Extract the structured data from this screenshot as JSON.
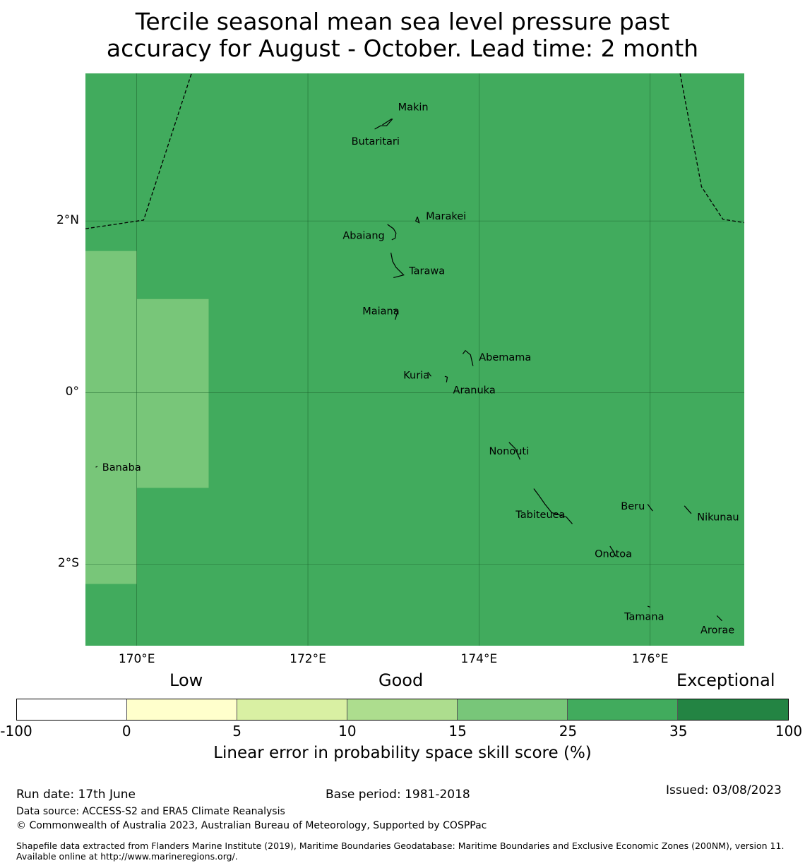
{
  "title": {
    "line1": "Tercile seasonal mean sea level pressure past",
    "line2": "accuracy for August - October. Lead time: 2 month"
  },
  "map": {
    "region": {
      "lon_min": 169.4,
      "lon_max": 177.1,
      "lat_min": -2.95,
      "lat_max": 3.72
    },
    "background_color": "#41ab5d",
    "lat_ticks": [
      {
        "value": 2,
        "label": "2°N"
      },
      {
        "value": 0,
        "label": "0°"
      },
      {
        "value": -2,
        "label": "2°S"
      }
    ],
    "lon_ticks": [
      {
        "value": 170,
        "label": "170°E"
      },
      {
        "value": 172,
        "label": "172°E"
      },
      {
        "value": 174,
        "label": "174°E"
      },
      {
        "value": 176,
        "label": "176°E"
      }
    ],
    "skill_cells": [
      {
        "lon_min": 169.4,
        "lon_max": 170.0,
        "lat_min": -2.23,
        "lat_max": 1.65,
        "category": "15-25",
        "color": "#78c679"
      },
      {
        "lon_min": 170.0,
        "lon_max": 170.84,
        "lat_min": -1.11,
        "lat_max": 1.09,
        "category": "15-25",
        "color": "#78c679"
      }
    ],
    "eez_boundaries": [
      [
        [
          169.4,
          1.91
        ],
        [
          170.08,
          2.01
        ],
        [
          170.64,
          3.72
        ]
      ],
      [
        [
          176.35,
          3.72
        ],
        [
          176.6,
          2.4
        ],
        [
          176.85,
          2.02
        ],
        [
          177.1,
          1.98
        ]
      ]
    ],
    "islands": [
      {
        "name": "Makin",
        "lon": 172.97,
        "lat": 3.27,
        "shape": [
          [
            172.87,
            3.12
          ],
          [
            172.98,
            3.19
          ]
        ]
      },
      {
        "name": "Butaritari",
        "lon": 172.79,
        "lat": 3.02,
        "shape": [
          [
            172.78,
            3.07
          ],
          [
            172.85,
            3.11
          ],
          [
            172.92,
            3.11
          ],
          [
            172.99,
            3.19
          ]
        ]
      },
      {
        "name": "Marakei",
        "lon": 173.28,
        "lat": 2.0,
        "shape": [
          [
            173.28,
            2.05
          ],
          [
            173.26,
            2.0
          ],
          [
            173.3,
            1.98
          ],
          [
            173.28,
            2.05
          ]
        ]
      },
      {
        "name": "Abaiang",
        "lon": 172.93,
        "lat": 1.84,
        "shape": [
          [
            172.93,
            1.96
          ],
          [
            173.0,
            1.91
          ],
          [
            173.03,
            1.86
          ],
          [
            173.02,
            1.8
          ],
          [
            172.98,
            1.78
          ]
        ]
      },
      {
        "name": "Tarawa",
        "lon": 173.0,
        "lat": 1.43,
        "shape": [
          [
            172.97,
            1.63
          ],
          [
            172.99,
            1.53
          ],
          [
            173.03,
            1.46
          ],
          [
            173.08,
            1.41
          ],
          [
            173.12,
            1.37
          ],
          [
            173.04,
            1.35
          ],
          [
            173.0,
            1.34
          ]
        ]
      },
      {
        "name": "Maiana",
        "lon": 173.02,
        "lat": 0.96,
        "shape": [
          [
            173.0,
            0.97
          ],
          [
            173.05,
            0.95
          ],
          [
            173.02,
            0.85
          ]
        ]
      },
      {
        "name": "Abemama",
        "lon": 173.9,
        "lat": 0.42,
        "shape": [
          [
            173.81,
            0.45
          ],
          [
            173.84,
            0.49
          ],
          [
            173.9,
            0.44
          ],
          [
            173.93,
            0.31
          ]
        ]
      },
      {
        "name": "Kuria",
        "lon": 173.42,
        "lat": 0.22,
        "shape": [
          [
            173.4,
            0.24
          ],
          [
            173.44,
            0.19
          ]
        ]
      },
      {
        "name": "Aranuka",
        "lon": 173.63,
        "lat": 0.17,
        "shape": [
          [
            173.6,
            0.19
          ],
          [
            173.63,
            0.18
          ],
          [
            173.62,
            0.12
          ]
        ]
      },
      {
        "name": "Nonouti",
        "lon": 174.35,
        "lat": -0.67,
        "shape": [
          [
            174.35,
            -0.58
          ],
          [
            174.42,
            -0.65
          ],
          [
            174.48,
            -0.78
          ]
        ]
      },
      {
        "name": "Tabiteuea",
        "lon": 174.85,
        "lat": -1.38,
        "shape": [
          [
            174.64,
            -1.12
          ],
          [
            174.7,
            -1.2
          ],
          [
            174.77,
            -1.3
          ],
          [
            174.85,
            -1.4
          ],
          [
            175.02,
            -1.45
          ],
          [
            175.09,
            -1.53
          ]
        ]
      },
      {
        "name": "Beru",
        "lon": 175.98,
        "lat": -1.33,
        "shape": [
          [
            175.97,
            -1.3
          ],
          [
            176.03,
            -1.38
          ]
        ]
      },
      {
        "name": "Nikunau",
        "lon": 176.45,
        "lat": -1.35,
        "shape": [
          [
            176.4,
            -1.32
          ],
          [
            176.48,
            -1.41
          ]
        ]
      },
      {
        "name": "Onotoa",
        "lon": 175.57,
        "lat": -1.87,
        "shape": [
          [
            175.53,
            -1.79
          ],
          [
            175.57,
            -1.85
          ],
          [
            175.6,
            -1.91
          ]
        ]
      },
      {
        "name": "Tamana",
        "lon": 175.98,
        "lat": -2.5,
        "shape": [
          [
            175.97,
            -2.49
          ],
          [
            176.0,
            -2.5
          ]
        ]
      },
      {
        "name": "Arorae",
        "lon": 176.82,
        "lat": -2.64,
        "shape": [
          [
            176.78,
            -2.6
          ],
          [
            176.84,
            -2.66
          ]
        ]
      },
      {
        "name": "Banaba",
        "lon": 169.53,
        "lat": -0.86,
        "shape": [
          [
            169.52,
            -0.87
          ],
          [
            169.54,
            -0.86
          ]
        ]
      }
    ]
  },
  "colorbar": {
    "category_labels": [
      {
        "text": "Low",
        "near_value": "2.5"
      },
      {
        "text": "Good",
        "near_value": "10"
      },
      {
        "text": "Exceptional",
        "near_value": "above 35"
      }
    ],
    "segments": [
      {
        "from": -100,
        "to": 0,
        "color": "#ffffff"
      },
      {
        "from": 0,
        "to": 5,
        "color": "#ffffcc"
      },
      {
        "from": 5,
        "to": 10,
        "color": "#d9f0a3"
      },
      {
        "from": 10,
        "to": 15,
        "color": "#addd8e"
      },
      {
        "from": 15,
        "to": 25,
        "color": "#78c679"
      },
      {
        "from": 25,
        "to": 35,
        "color": "#41ab5d"
      },
      {
        "from": 35,
        "to": 100,
        "color": "#238443"
      }
    ],
    "tick_labels": [
      "-100",
      "0",
      "5",
      "10",
      "15",
      "25",
      "35",
      "100"
    ],
    "label": "Linear error in probability space skill score (%)"
  },
  "footer": {
    "run_date": "Run date: 17th June",
    "base_period": "Base period: 1981-2018",
    "issued": "Issued: 03/08/2023",
    "data_source": "Data source: ACCESS-S2 and ERA5 Climate Reanalysis",
    "copyright": "© Commonwealth of Australia 2023, Australian Bureau of Meteorology, Supported by COSPPac",
    "shapefile_note": "Shapefile data extracted from Flanders Marine Institute (2019), Maritime Boundaries Geodatabase: Maritime Boundaries and Exclusive Economic Zones (200NM), version 11. Available online at http://www.marineregions.org/."
  }
}
